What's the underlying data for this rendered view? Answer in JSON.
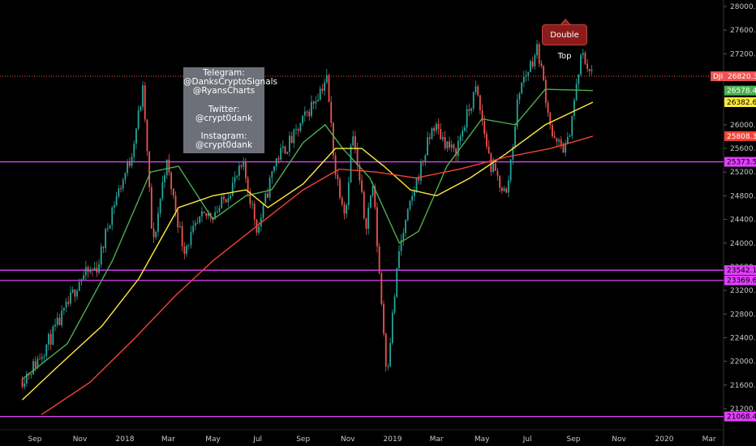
{
  "chart_data": {
    "type": "candlestick",
    "symbol": "DJI",
    "price_axis": {
      "ticks": [
        "28000.0",
        "27600.0",
        "27200.0",
        "26800.0",
        "26400.0",
        "26000.0",
        "25600.0",
        "25200.0",
        "24800.0",
        "24400.0",
        "24000.0",
        "23600.0",
        "23200.0",
        "22800.0",
        "22400.0",
        "22000.0",
        "21600.0",
        "21200.0"
      ],
      "range": [
        21100,
        28050
      ]
    },
    "time_axis": {
      "labels": [
        "Sep",
        "Nov",
        "2018",
        "Mar",
        "May",
        "Jul",
        "Sep",
        "Nov",
        "2019",
        "Mar",
        "May",
        "Jul",
        "Sep",
        "Nov",
        "2020",
        "Mar"
      ]
    },
    "close_series": [
      {
        "date": "2017-08-15",
        "value": 21700
      },
      {
        "date": "2017-09-01",
        "value": 21950
      },
      {
        "date": "2017-09-20",
        "value": 22350
      },
      {
        "date": "2017-10-10",
        "value": 22800
      },
      {
        "date": "2017-11-01",
        "value": 23400
      },
      {
        "date": "2017-11-25",
        "value": 23600
      },
      {
        "date": "2017-12-15",
        "value": 24600
      },
      {
        "date": "2018-01-08",
        "value": 25400
      },
      {
        "date": "2018-01-26",
        "value": 26600
      },
      {
        "date": "2018-02-08",
        "value": 23900
      },
      {
        "date": "2018-02-26",
        "value": 25400
      },
      {
        "date": "2018-03-22",
        "value": 23900
      },
      {
        "date": "2018-04-15",
        "value": 24400
      },
      {
        "date": "2018-05-10",
        "value": 24600
      },
      {
        "date": "2018-06-11",
        "value": 25300
      },
      {
        "date": "2018-07-01",
        "value": 24200
      },
      {
        "date": "2018-07-25",
        "value": 25400
      },
      {
        "date": "2018-08-20",
        "value": 25800
      },
      {
        "date": "2018-09-20",
        "value": 26500
      },
      {
        "date": "2018-10-03",
        "value": 26800
      },
      {
        "date": "2018-10-15",
        "value": 25200
      },
      {
        "date": "2018-10-29",
        "value": 24500
      },
      {
        "date": "2018-11-07",
        "value": 25900
      },
      {
        "date": "2018-11-25",
        "value": 24300
      },
      {
        "date": "2018-12-05",
        "value": 25000
      },
      {
        "date": "2018-12-24",
        "value": 21800
      },
      {
        "date": "2019-01-10",
        "value": 23900
      },
      {
        "date": "2019-02-01",
        "value": 25000
      },
      {
        "date": "2019-02-25",
        "value": 26000
      },
      {
        "date": "2019-03-25",
        "value": 25500
      },
      {
        "date": "2019-04-23",
        "value": 26600
      },
      {
        "date": "2019-05-13",
        "value": 25300
      },
      {
        "date": "2019-06-03",
        "value": 24800
      },
      {
        "date": "2019-06-20",
        "value": 26600
      },
      {
        "date": "2019-07-15",
        "value": 27300
      },
      {
        "date": "2019-08-05",
        "value": 25700
      },
      {
        "date": "2019-08-23",
        "value": 25600
      },
      {
        "date": "2019-09-12",
        "value": 27200
      },
      {
        "date": "2019-09-27",
        "value": 26820.3
      }
    ],
    "moving_averages": [
      {
        "label": "26578.4",
        "color": "#4caf50",
        "last_value": 26578.4,
        "points": [
          {
            "date": "2017-08-15",
            "value": 21700
          },
          {
            "date": "2017-10-15",
            "value": 22300
          },
          {
            "date": "2017-12-15",
            "value": 23700
          },
          {
            "date": "2018-02-05",
            "value": 25200
          },
          {
            "date": "2018-03-15",
            "value": 25300
          },
          {
            "date": "2018-05-01",
            "value": 24400
          },
          {
            "date": "2018-06-15",
            "value": 24800
          },
          {
            "date": "2018-07-20",
            "value": 24900
          },
          {
            "date": "2018-09-01",
            "value": 25700
          },
          {
            "date": "2018-10-01",
            "value": 26000
          },
          {
            "date": "2018-10-25",
            "value": 25600
          },
          {
            "date": "2018-12-01",
            "value": 25100
          },
          {
            "date": "2019-01-10",
            "value": 24000
          },
          {
            "date": "2019-02-05",
            "value": 24200
          },
          {
            "date": "2019-03-15",
            "value": 25300
          },
          {
            "date": "2019-05-01",
            "value": 26100
          },
          {
            "date": "2019-06-15",
            "value": 26000
          },
          {
            "date": "2019-07-25",
            "value": 26600
          },
          {
            "date": "2019-09-27",
            "value": 26578.4
          }
        ]
      },
      {
        "label": "26382.6",
        "color": "#ffeb3b",
        "last_value": 26382.6,
        "points": [
          {
            "date": "2017-08-15",
            "value": 21350
          },
          {
            "date": "2017-10-01",
            "value": 21900
          },
          {
            "date": "2017-12-01",
            "value": 22600
          },
          {
            "date": "2018-01-20",
            "value": 23400
          },
          {
            "date": "2018-03-15",
            "value": 24600
          },
          {
            "date": "2018-05-01",
            "value": 24800
          },
          {
            "date": "2018-06-15",
            "value": 24900
          },
          {
            "date": "2018-07-15",
            "value": 24600
          },
          {
            "date": "2018-09-01",
            "value": 25000
          },
          {
            "date": "2018-10-15",
            "value": 25600
          },
          {
            "date": "2018-11-20",
            "value": 25600
          },
          {
            "date": "2018-12-20",
            "value": 25300
          },
          {
            "date": "2019-01-25",
            "value": 24900
          },
          {
            "date": "2019-03-01",
            "value": 24800
          },
          {
            "date": "2019-04-15",
            "value": 25100
          },
          {
            "date": "2019-06-01",
            "value": 25500
          },
          {
            "date": "2019-07-25",
            "value": 26000
          },
          {
            "date": "2019-09-27",
            "value": 26382.6
          }
        ]
      },
      {
        "label": "25808.3",
        "color": "#f44336",
        "last_value": 25808.3,
        "points": [
          {
            "date": "2017-09-10",
            "value": 21100
          },
          {
            "date": "2017-11-15",
            "value": 21650
          },
          {
            "date": "2018-01-15",
            "value": 22400
          },
          {
            "date": "2018-03-10",
            "value": 23100
          },
          {
            "date": "2018-05-01",
            "value": 23700
          },
          {
            "date": "2018-07-01",
            "value": 24300
          },
          {
            "date": "2018-09-01",
            "value": 24900
          },
          {
            "date": "2018-10-20",
            "value": 25250
          },
          {
            "date": "2018-12-10",
            "value": 25200
          },
          {
            "date": "2019-02-01",
            "value": 25100
          },
          {
            "date": "2019-04-01",
            "value": 25250
          },
          {
            "date": "2019-06-01",
            "value": 25450
          },
          {
            "date": "2019-08-01",
            "value": 25600
          },
          {
            "date": "2019-09-27",
            "value": 25808.3
          }
        ]
      }
    ],
    "horizontal_levels": [
      25373.5,
      23542.1,
      23369.6,
      21068.4
    ],
    "level_labels": [
      "25373.5",
      "23542.1",
      "23369.6",
      "21068.4"
    ],
    "last_price": 26820.3,
    "last_price_label": "26820.3",
    "annotations": [
      {
        "type": "callout",
        "text": "Double Top",
        "color": "#8c1c1c"
      },
      {
        "type": "textbox",
        "lines": [
          "Telegram:",
          "@DanksCryptoSignals",
          "@RyansCharts",
          "",
          "Twitter:",
          "@crypt0dank",
          "",
          "Instagram:",
          "@crypt0dank"
        ]
      }
    ],
    "grid": false,
    "legend": "none"
  },
  "info_box": {
    "telegram_label": "Telegram:",
    "telegram_1": "@DanksCryptoSignals",
    "telegram_2": "@RyansCharts",
    "twitter_label": "Twitter:",
    "twitter_handle": "@crypt0dank",
    "instagram_label": "Instagram:",
    "instagram_handle": "@crypt0dank"
  },
  "callout": {
    "text": "Double Top"
  },
  "colors": {
    "up": "#26a69a",
    "down": "#ef5350",
    "level": "#e040fb",
    "ma_green": "#4caf50",
    "ma_yellow": "#ffeb3b",
    "ma_red": "#f44336",
    "price_tag": "#ef5350"
  }
}
